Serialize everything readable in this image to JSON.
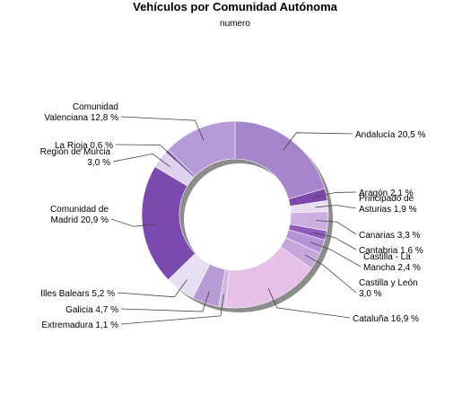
{
  "chart_data": {
    "type": "pie",
    "style": "donut",
    "title": "Vehículos por Comunidad Autónoma",
    "subtitle": "numero",
    "slices": [
      {
        "name": "Andalucía",
        "label_lines": [
          "Andalucía 20,5 %"
        ],
        "percent": 20.5,
        "color": "#a585cc"
      },
      {
        "name": "Aragón",
        "label_lines": [
          "Aragón 2,1 %"
        ],
        "percent": 2.1,
        "color": "#7d48ac"
      },
      {
        "name": "Principado de Asturias",
        "label_lines": [
          "Principado de",
          "Asturias 1,9 %"
        ],
        "percent": 1.9,
        "color": "#e8dcf0"
      },
      {
        "name": "Canarias",
        "label_lines": [
          "Canarias 3,3 %"
        ],
        "percent": 3.3,
        "color": "#c9b0e0"
      },
      {
        "name": "Cantabria",
        "label_lines": [
          "Cantabria 1,6 %"
        ],
        "percent": 1.6,
        "color": "#8e5cbd"
      },
      {
        "name": "Castilla - La Mancha",
        "label_lines": [
          "Castilla - La",
          "Mancha 2,4 %"
        ],
        "percent": 2.4,
        "color": "#b394d8"
      },
      {
        "name": "Castilla y León",
        "label_lines": [
          "Castilla y León",
          "3,0 %"
        ],
        "percent": 3.0,
        "color": "#c5a7dc"
      },
      {
        "name": "Cataluña",
        "label_lines": [
          "Cataluña 16,9 %"
        ],
        "percent": 16.9,
        "color": "#e6c0e6"
      },
      {
        "name": "Extremadura",
        "label_lines": [
          "Extremadura 1,1 %"
        ],
        "percent": 1.1,
        "color": "#cfb6e4"
      },
      {
        "name": "Galicia",
        "label_lines": [
          "Galicia 4,7 %"
        ],
        "percent": 4.7,
        "color": "#b79bd6"
      },
      {
        "name": "Illes Balears",
        "label_lines": [
          "Illes Balears 5,2 %"
        ],
        "percent": 5.2,
        "color": "#e7def2"
      },
      {
        "name": "Comunidad de Madrid",
        "label_lines": [
          "Comunidad de",
          "Madrid 20,9 %"
        ],
        "percent": 20.9,
        "color": "#7b4aae"
      },
      {
        "name": "Región de Murcia",
        "label_lines": [
          "Región de Murcia",
          "3,0 %"
        ],
        "percent": 3.0,
        "color": "#ded0ee"
      },
      {
        "name": "La Rioja",
        "label_lines": [
          "La Rioja 0,6 %"
        ],
        "percent": 0.6,
        "color": "#8a6bb4"
      },
      {
        "name": "Comunidad Valenciana",
        "label_lines": [
          "Comunidad",
          "Valenciana 12,8 %"
        ],
        "percent": 12.8,
        "color": "#b59bd7"
      }
    ]
  }
}
